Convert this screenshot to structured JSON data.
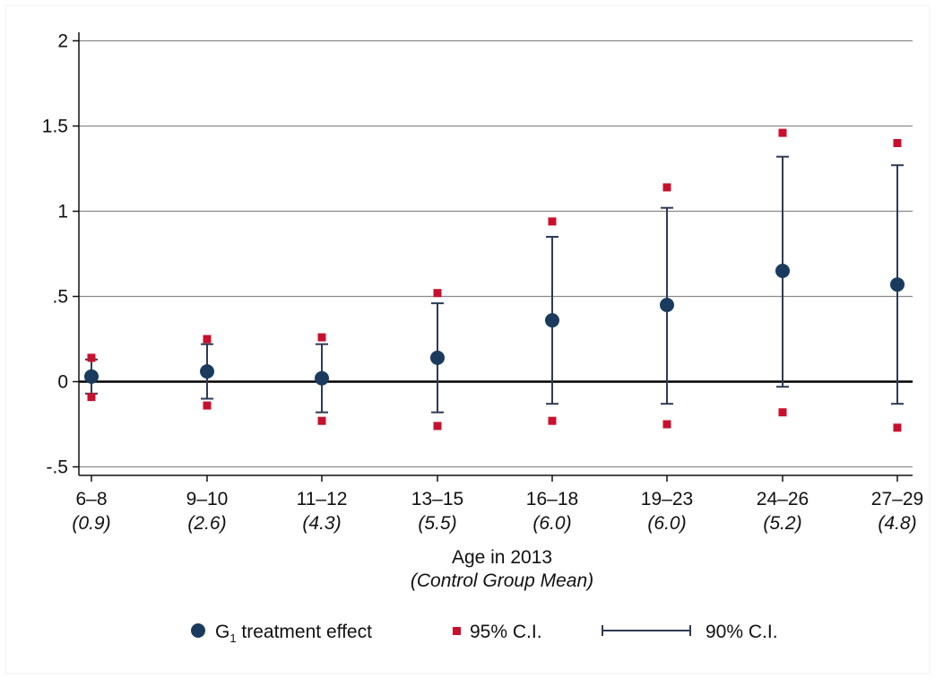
{
  "chart_data": {
    "type": "scatter",
    "categories": [
      "6–8",
      "9–10",
      "11–12",
      "13–15",
      "16–18",
      "19–23",
      "24–26",
      "27–29"
    ],
    "category_sublabels": [
      "(0.9)",
      "(2.6)",
      "(4.3)",
      "(5.5)",
      "(6.0)",
      "(6.0)",
      "(5.2)",
      "(4.8)"
    ],
    "xlabel": "Age in 2013",
    "xlabel_sub": "(Control Group Mean)",
    "ylabel": "",
    "title": "",
    "ylim": [
      -0.55,
      2.05
    ],
    "yticks": [
      -0.5,
      0,
      0.5,
      1,
      1.5,
      2
    ],
    "ytick_labels": [
      "-.5",
      "0",
      ".5",
      "1",
      "1.5",
      "2"
    ],
    "grid": true,
    "zero_line": true,
    "legend_position": "bottom",
    "legend": {
      "point_label_prefix": "G",
      "point_label_subscript": "1",
      "point_label_suffix": " treatment effect",
      "ci95_label": "95% C.I.",
      "ci90_label": "90% C.I."
    },
    "series": [
      {
        "name": "G1 treatment effect",
        "values": [
          0.03,
          0.06,
          0.02,
          0.14,
          0.36,
          0.45,
          0.65,
          0.57
        ]
      },
      {
        "name": "90% C.I.",
        "lower": [
          -0.07,
          -0.1,
          -0.18,
          -0.18,
          -0.13,
          -0.13,
          -0.03,
          -0.13
        ],
        "upper": [
          0.13,
          0.22,
          0.22,
          0.46,
          0.85,
          1.02,
          1.32,
          1.27
        ]
      },
      {
        "name": "95% C.I.",
        "lower": [
          -0.09,
          -0.14,
          -0.23,
          -0.26,
          -0.23,
          -0.25,
          -0.18,
          -0.27
        ],
        "upper": [
          0.14,
          0.25,
          0.26,
          0.52,
          0.94,
          1.14,
          1.46,
          1.4
        ]
      }
    ],
    "colors": {
      "point": "#1a3b5e",
      "ci90": "#2e3b55",
      "ci95": "#c8102e",
      "grid": "#8a8a8a",
      "zero": "#000000",
      "axis": "#111111"
    }
  }
}
